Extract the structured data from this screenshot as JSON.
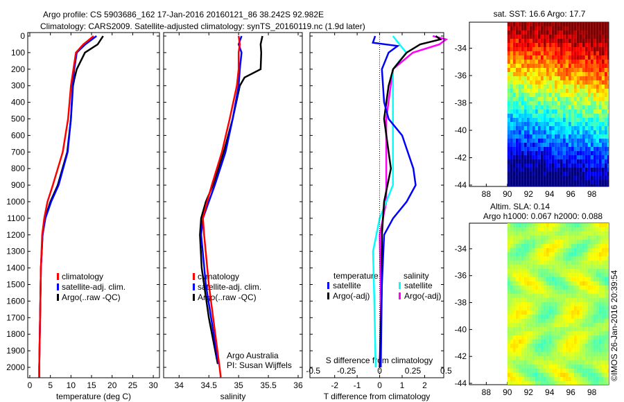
{
  "title": {
    "line1": "Argo profile: CS 5903686_162 17-Jan-2016 20160121_86 38.242S 92.982E",
    "line2": "Climatology: CARS2009. Satellite-adjusted climatology: synTS_20160119.nc (1.9d later)"
  },
  "credit": "©IMOS 26-Jan-2016 20:39:54",
  "chart_data": [
    {
      "type": "line",
      "name": "temperature",
      "xlabel": "temperature (deg C)",
      "ylabel": "",
      "xlim": [
        -0.5,
        31.5
      ],
      "ylim": [
        2060,
        0
      ],
      "xticks": [
        0,
        5,
        10,
        15,
        20,
        25,
        30
      ],
      "yticks": [
        0,
        100,
        200,
        300,
        400,
        500,
        600,
        700,
        800,
        900,
        1000,
        1100,
        1200,
        1300,
        1400,
        1500,
        1600,
        1700,
        1800,
        1900,
        2000
      ],
      "legend": [
        "climatology",
        "satellite-adj. clim.",
        "Argo(..raw -QC)"
      ],
      "series": [
        {
          "name": "climatology",
          "color": "#ff0000",
          "depth": [
            0,
            50,
            100,
            200,
            300,
            500,
            700,
            900,
            1000,
            1100,
            1200,
            1400,
            1700,
            2000,
            2060
          ],
          "values": [
            15.5,
            13,
            11.2,
            10.6,
            10,
            9.3,
            8,
            5.6,
            4.3,
            3.5,
            3,
            2.7,
            2.5,
            2.3,
            2.3
          ]
        },
        {
          "name": "satellite-adj. clim.",
          "color": "#0000ff",
          "depth": [
            0,
            50,
            100,
            200,
            300,
            500,
            700,
            900,
            1000,
            1100,
            1200,
            1400,
            1700,
            2000,
            2060
          ],
          "values": [
            16.2,
            13.5,
            11.4,
            10.8,
            10.4,
            10,
            9.2,
            7,
            5.2,
            3.8,
            3.1,
            2.7,
            2.5,
            2.3,
            2.3
          ]
        },
        {
          "name": "Argo(..raw -QC)",
          "color": "#000000",
          "depth": [
            0,
            50,
            100,
            200,
            250,
            300,
            500,
            700,
            900,
            1000,
            1100,
            1200,
            1400,
            1700,
            2000,
            2060
          ],
          "values": [
            17.8,
            16.5,
            13.4,
            11.4,
            10.9,
            10.5,
            10,
            9.1,
            6.8,
            5,
            3.7,
            3.1,
            2.7,
            2.5,
            2.3,
            2.3
          ]
        }
      ]
    },
    {
      "type": "line",
      "name": "salinity",
      "xlabel": "salinity",
      "xlim": [
        33.74,
        36.07
      ],
      "ylim": [
        2060,
        0
      ],
      "xticks": [
        34,
        34.5,
        35,
        35.5,
        36
      ],
      "legend": [
        "climatology",
        "satellite-adj. clim.",
        "Argo(..raw -QC)"
      ],
      "annotation": [
        "Argo Australia",
        "PI: Susan Wijffels"
      ],
      "series": [
        {
          "name": "climatology",
          "color": "#ff0000",
          "depth": [
            0,
            50,
            100,
            200,
            300,
            500,
            700,
            900,
            1000,
            1100,
            1200,
            1500,
            2000,
            2060
          ],
          "values": [
            35.0,
            35.02,
            35.0,
            35.0,
            34.97,
            34.85,
            34.72,
            34.55,
            34.47,
            34.4,
            34.42,
            34.5,
            34.68,
            34.7
          ]
        },
        {
          "name": "satellite-adj. clim.",
          "color": "#0000ff",
          "depth": [
            0,
            50,
            100,
            200,
            300,
            500,
            700,
            900,
            1000,
            1100,
            1200,
            1500,
            1980
          ],
          "values": [
            35.05,
            35.0,
            35.05,
            35.02,
            35.0,
            34.9,
            34.78,
            34.6,
            34.5,
            34.4,
            34.37,
            34.45,
            34.66
          ]
        },
        {
          "name": "Argo(..raw -QC)",
          "color": "#000000",
          "depth": [
            0,
            50,
            100,
            200,
            250,
            300,
            500,
            700,
            900,
            1000,
            1100,
            1200,
            1400,
            1700,
            1980
          ],
          "values": [
            35.4,
            35.37,
            35.38,
            35.37,
            35.1,
            35.02,
            34.9,
            34.75,
            34.57,
            34.45,
            34.37,
            34.35,
            34.38,
            34.5,
            34.65
          ]
        }
      ]
    },
    {
      "type": "line",
      "name": "differences",
      "xlabel": "T difference from climatology",
      "x2label": "S difference from climatology",
      "xlim": [
        -3.1,
        2.85
      ],
      "ylim": [
        2060,
        0
      ],
      "xticks": [
        -2,
        -1,
        0,
        1,
        2
      ],
      "x2ticks": [
        "-0.5",
        "-0.25",
        "0",
        "0.25",
        "0.5"
      ],
      "legend_headers": [
        "temperature",
        "salinity"
      ],
      "legend": [
        "satellite",
        "Argo(-adj)",
        "satellite",
        "Argo(-adj)"
      ],
      "series": [
        {
          "name": "T satellite",
          "color": "#0000ff",
          "unit": "T",
          "depth": [
            0,
            40,
            60,
            100,
            200,
            400,
            500,
            600,
            800,
            900,
            1000,
            1100,
            1200,
            1500,
            2000
          ],
          "values": [
            -0.2,
            -0.3,
            0.8,
            0.4,
            0.1,
            0.2,
            0.4,
            1,
            1.5,
            1.6,
            1.2,
            0.6,
            0.2,
            0.1,
            0.05
          ]
        },
        {
          "name": "T Argo(-adj)",
          "color": "#000000",
          "unit": "T",
          "depth": [
            0,
            20,
            50,
            100,
            200,
            300,
            500,
            700,
            800,
            1000,
            1200,
            1500,
            2000
          ],
          "values": [
            2.5,
            2.7,
            1.8,
            1.2,
            0.6,
            0.4,
            0.2,
            0.4,
            0.5,
            0.2,
            0.1,
            0.1,
            0
          ]
        },
        {
          "name": "S satellite",
          "color": "#00ffff",
          "unit": "S",
          "depth": [
            0,
            50,
            100,
            200,
            500,
            900,
            1100,
            1300,
            1600,
            2000
          ],
          "values": [
            0.1,
            0.15,
            0.2,
            0.1,
            0.1,
            0.1,
            0,
            -0.05,
            -0.04,
            -0.03
          ]
        },
        {
          "name": "S Argo(-adj)",
          "color": "#ff00ff",
          "unit": "S",
          "depth": [
            0,
            20,
            50,
            100,
            200,
            500,
            800,
            1000,
            1200,
            1600,
            2000
          ],
          "values": [
            0.4,
            0.5,
            0.45,
            0.25,
            0.1,
            0.05,
            0.05,
            0.05,
            0,
            0.01,
            0
          ]
        }
      ]
    },
    {
      "type": "heatmap",
      "name": "sst-map",
      "title": "sat. SST: 16.6 Argo: 17.7",
      "xticks": [
        88,
        90,
        92,
        94,
        96,
        98
      ],
      "yticks": [
        -34,
        -36,
        -38,
        -40,
        -42,
        -44
      ],
      "xlim": [
        86.4,
        99.6
      ],
      "ylim": [
        -44.1,
        -32.1
      ]
    },
    {
      "type": "heatmap",
      "name": "sla-map",
      "title": [
        "Altim. SLA: 0.14",
        "Argo h1000: 0.067 h2000: 0.088"
      ],
      "xticks": [
        88,
        90,
        92,
        94,
        96,
        98
      ],
      "yticks": [
        -34,
        -36,
        -38,
        -40,
        -42,
        -44
      ],
      "xlim": [
        86.4,
        99.6
      ],
      "ylim": [
        -44.1,
        -32.1
      ]
    }
  ]
}
